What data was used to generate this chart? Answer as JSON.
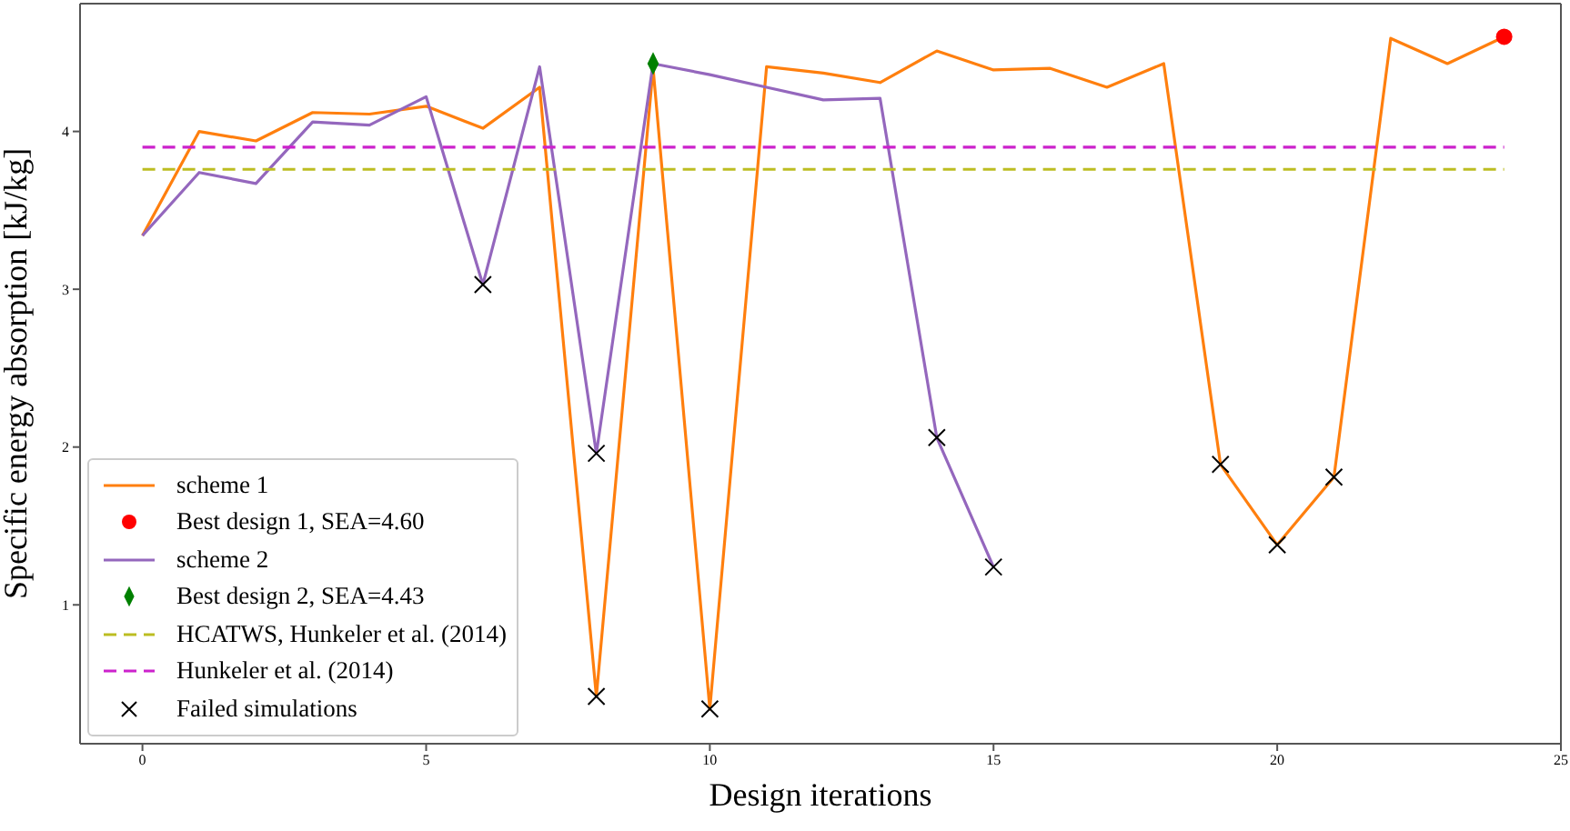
{
  "chart_data": {
    "type": "line",
    "xlabel": "Design iterations",
    "ylabel": "Specific energy absorption [kJ/kg]",
    "xlim": [
      -1.1,
      25
    ],
    "xticks": [
      0,
      5,
      10,
      15,
      20,
      25
    ],
    "ylim": [
      0.12,
      4.81
    ],
    "yticks": [
      1,
      2,
      3,
      4
    ],
    "legend": "bottom left",
    "series": [
      {
        "name": "scheme 1",
        "color": "#ff7f0e",
        "line_style": "solid",
        "x": [
          0,
          1,
          2,
          3,
          4,
          5,
          6,
          7,
          8,
          9,
          10,
          11,
          12,
          13,
          14,
          15,
          16,
          17,
          18,
          19,
          20,
          21,
          22,
          23,
          24
        ],
        "values": [
          3.34,
          4.0,
          3.94,
          4.12,
          4.11,
          4.16,
          4.02,
          4.28,
          0.42,
          4.4,
          0.34,
          4.41,
          4.37,
          4.31,
          4.51,
          4.39,
          4.4,
          4.28,
          4.43,
          1.89,
          1.38,
          1.81,
          4.59,
          4.43,
          4.6
        ]
      },
      {
        "type": "scatter",
        "name": "Best design 1, SEA=4.60",
        "color": "#ff0000",
        "marker": "circle",
        "x": [
          24
        ],
        "values": [
          4.6
        ]
      },
      {
        "name": "scheme 2",
        "color": "#9467bd",
        "line_style": "solid",
        "x": [
          0,
          1,
          2,
          3,
          4,
          5,
          6,
          7,
          8,
          9,
          10,
          11,
          12,
          13,
          14,
          15
        ],
        "values": [
          3.34,
          3.74,
          3.67,
          4.06,
          4.04,
          4.22,
          3.03,
          4.41,
          1.96,
          4.43,
          4.36,
          4.28,
          4.2,
          4.21,
          2.06,
          1.24
        ]
      },
      {
        "type": "scatter",
        "name": "Best design 2, SEA=4.43",
        "color": "#008000",
        "marker": "diamond",
        "x": [
          9
        ],
        "values": [
          4.43
        ]
      },
      {
        "name": "HCATWS, Hunkeler et al. (2014)",
        "color": "#bcbd22",
        "line_style": "dashed",
        "x": [
          0,
          24
        ],
        "values": [
          3.76,
          3.76
        ]
      },
      {
        "name": "Hunkeler et al. (2014)",
        "color": "#cc22cc",
        "line_style": "dashed",
        "x": [
          0,
          24
        ],
        "values": [
          3.9,
          3.9
        ]
      },
      {
        "type": "scatter",
        "name": "Failed simulations",
        "color": "#000000",
        "marker": "cross",
        "x": [
          6,
          8,
          8,
          10,
          14,
          15,
          19,
          20,
          21
        ],
        "values": [
          3.03,
          1.96,
          0.42,
          0.34,
          2.06,
          1.24,
          1.89,
          1.38,
          1.81
        ]
      }
    ]
  }
}
